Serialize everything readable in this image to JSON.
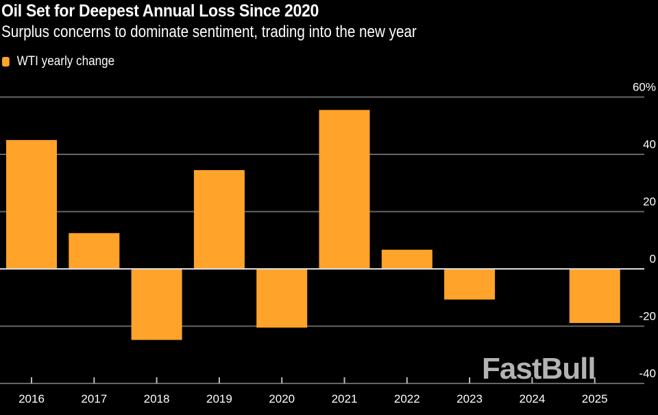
{
  "chart_data": {
    "type": "bar",
    "title": "Oil Set for Deepest Annual Loss Since 2020",
    "subtitle": "Surplus concerns to dominate sentiment, trading into the new year",
    "legend": [
      {
        "name": "WTI yearly change",
        "color": "#ffa32b"
      }
    ],
    "legend_placement": "top-left",
    "categories": [
      "2016",
      "2017",
      "2018",
      "2019",
      "2020",
      "2021",
      "2022",
      "2023",
      "2024",
      "2025"
    ],
    "series": [
      {
        "name": "WTI yearly change",
        "values": [
          45,
          12.5,
          -24.8,
          34.5,
          -20.5,
          55.5,
          6.7,
          -10.7,
          0.1,
          -18.9
        ]
      }
    ],
    "ylim": [
      -40,
      60
    ],
    "yticks": [
      60,
      40,
      20,
      0,
      -20,
      -40
    ],
    "ytick_labels": [
      "60%",
      "40",
      "20",
      "0",
      "-20",
      "-40"
    ],
    "xlabel": "",
    "ylabel": "",
    "grid": true,
    "y_axis_side": "right"
  },
  "watermark": "FastBull",
  "colors": {
    "bar": "#ffa32b",
    "grid": "#666666",
    "zero_line": "#dddddd",
    "background": "#000000"
  }
}
